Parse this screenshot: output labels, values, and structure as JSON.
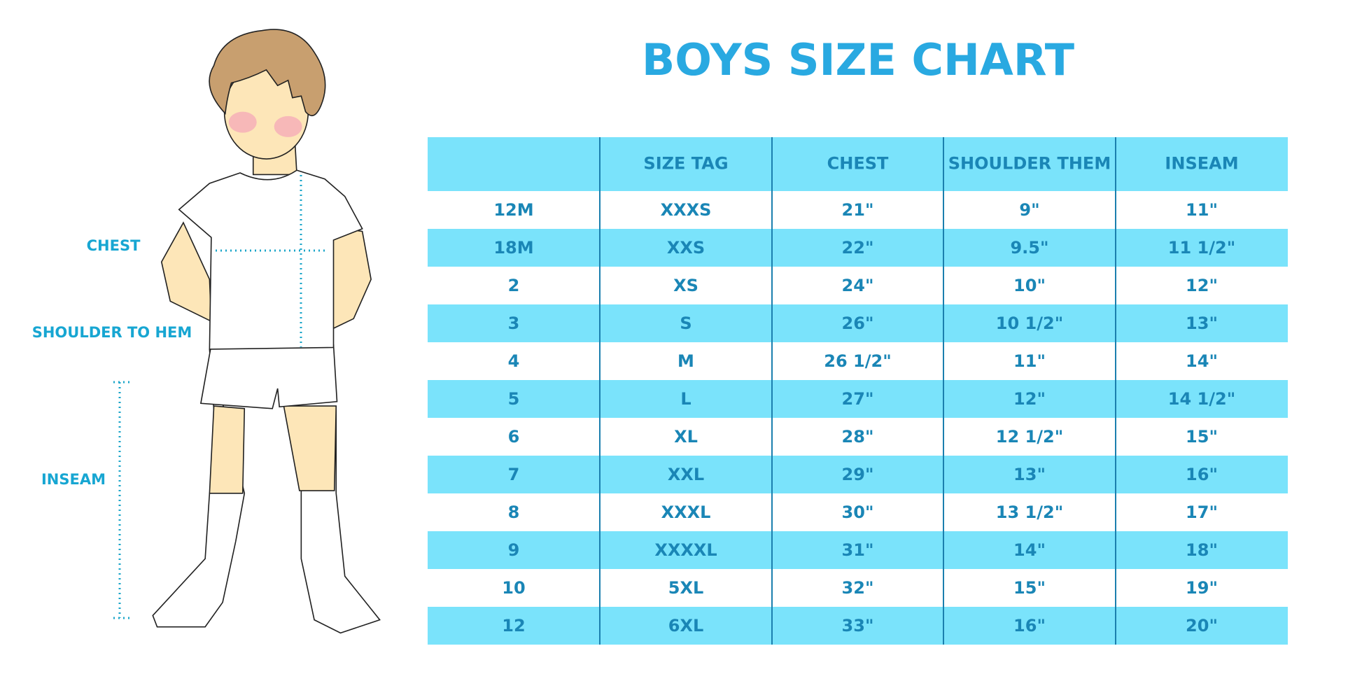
{
  "title": "BOYS SIZE CHART",
  "labels": {
    "chest": "CHEST",
    "shoulder": "SHOULDER TO HEM",
    "inseam": "INSEAM"
  },
  "table": {
    "header": [
      "SIZE TAG",
      "CHEST",
      "SHOULDER THEM",
      "INSEAM"
    ],
    "rows": [
      [
        "12M",
        "XXXS",
        "21\"",
        "9\"",
        "11\""
      ],
      [
        "18M",
        "XXS",
        "22\"",
        "9.5\"",
        "11 1/2\""
      ],
      [
        "2",
        "XS",
        "24\"",
        "10\"",
        "12\""
      ],
      [
        "3",
        "S",
        "26\"",
        "10 1/2\"",
        "13\""
      ],
      [
        "4",
        "M",
        "26 1/2\"",
        "11\"",
        "14\""
      ],
      [
        "5",
        "L",
        "27\"",
        "12\"",
        "14 1/2\""
      ],
      [
        "6",
        "XL",
        "28\"",
        "12 1/2\"",
        "15\""
      ],
      [
        "7",
        "XXL",
        "29\"",
        "13\"",
        "16\""
      ],
      [
        "8",
        "XXXL",
        "30\"",
        "13 1/2\"",
        "17\""
      ],
      [
        "9",
        "XXXXL",
        "31\"",
        "14\"",
        "18\""
      ],
      [
        "10",
        "5XL",
        "32\"",
        "15\"",
        "19\""
      ],
      [
        "12",
        "6XL",
        "33\"",
        "16\"",
        "20\""
      ]
    ]
  }
}
